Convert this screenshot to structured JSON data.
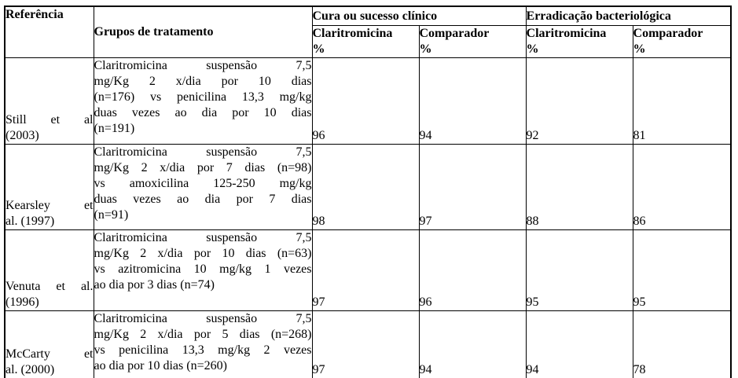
{
  "colors": {
    "border": "#000000",
    "text": "#000000",
    "background": "#ffffff"
  },
  "header": {
    "referencia": "Referência",
    "grupos": "Grupos de tratamento",
    "groups": [
      {
        "label": "Cura ou sucesso clínico"
      },
      {
        "label": "Erradicação bacteriológica"
      }
    ],
    "subcols": [
      "Claritromicina\n%",
      "Comparador\n%",
      "Claritromicina\n%",
      "Comparador\n%"
    ]
  },
  "rows": [
    {
      "ref": "Still et al\n(2003)",
      "ref_text": "Still et al (2003)",
      "treatment": "Claritromicina suspensão 7,5\nmg/Kg 2 x/dia por 10 dias\n(n=176) vs penicilina 13,3 mg/kg\nduas vezes ao dia por 10 dias\n(n=191)",
      "treatment_text": "Claritromicina suspensão 7,5 mg/Kg 2 x/dia por 10 dias (n=176) vs penicilina 13,3 mg/kg duas vezes ao dia por 10 dias (n=191)",
      "values": [
        "96",
        "94",
        "92",
        "81"
      ]
    },
    {
      "ref": "Kearsley et\nal. (1997)",
      "ref_text": "Kearsley et al. (1997)",
      "treatment": "Claritromicina suspensão 7,5\nmg/Kg 2 x/dia por 7 dias (n=98)\nvs amoxicilina 125-250 mg/kg\nduas vezes ao dia por 7 dias\n(n=91)",
      "treatment_text": "Claritromicina suspensão 7,5 mg/Kg 2 x/dia por 7 dias (n=98) vs amoxicilina 125-250 mg/kg duas vezes ao dia por 7 dias (n=91)",
      "values": [
        "98",
        "97",
        "88",
        "86"
      ]
    },
    {
      "ref": "Venuta et al.\n(1996)",
      "ref_text": "Venuta et al. (1996)",
      "treatment": "Claritromicina suspensão 7,5\nmg/Kg 2 x/dia por 10 dias (n=63)\nvs azitromicina 10 mg/kg 1 vezes\nao dia por 3 dias (n=74)",
      "treatment_text": "Claritromicina suspensão 7,5 mg/Kg 2 x/dia por 10 dias (n=63) vs azitromicina 10 mg/kg 1 vezes ao dia por 3 dias (n=74)",
      "values": [
        "97",
        "96",
        "95",
        "95"
      ]
    },
    {
      "ref": "McCarty et\nal. (2000)",
      "ref_text": "McCarty et al. (2000)",
      "treatment": "Claritromicina suspensão 7,5\nmg/Kg 2 x/dia por 5 dias (n=268)\nvs penicilina 13,3 mg/kg 2 vezes\nao dia por 10 dias (n=260)",
      "treatment_text": "Claritromicina suspensão 7,5 mg/Kg 2 x/dia por 5 dias (n=268) vs penicilina 13,3 mg/kg 2 vezes ao dia por 10 dias (n=260)",
      "values": [
        "97",
        "94",
        "94",
        "78"
      ]
    }
  ]
}
